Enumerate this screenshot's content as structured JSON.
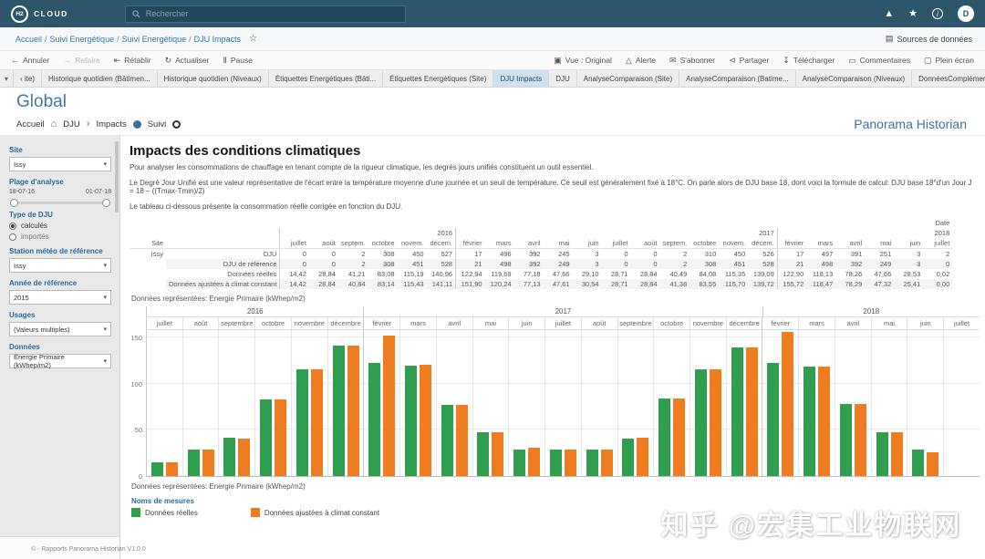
{
  "colors": {
    "navbar": "#2d566b",
    "accent_blue": "#3a72a4",
    "green": "#2f9e4f",
    "orange": "#ef7c1e",
    "active_tab_bg": "#cfe1ee"
  },
  "navbar": {
    "logo_text": "H2",
    "logo_suffix": "CLOUD",
    "search_placeholder": "Rechercher",
    "user_initial": "D"
  },
  "breadcrumb": {
    "items": [
      "Accueil",
      "Suivi Energétique",
      "Suivi Energétique",
      "DJU Impacts"
    ],
    "sources_label": "Sources de données"
  },
  "toolbar": {
    "left": [
      {
        "name": "annuler",
        "icon_name": "undo-icon",
        "icon": "←",
        "label": "Annuler",
        "disabled": false
      },
      {
        "name": "refaire",
        "icon_name": "redo-icon",
        "icon": "→",
        "label": "Refaire",
        "disabled": true
      },
      {
        "name": "retablir",
        "icon_name": "revert-icon",
        "icon": "⇤",
        "label": "Rétablir",
        "disabled": false
      },
      {
        "name": "actualiser",
        "icon_name": "refresh-icon",
        "icon": "↻",
        "label": "Actualiser",
        "disabled": false
      },
      {
        "name": "pause",
        "icon_name": "pause-icon",
        "icon": "Ⅱ",
        "label": "Pause",
        "disabled": false
      }
    ],
    "right": [
      {
        "name": "vue",
        "icon_name": "view-icon",
        "icon": "▣",
        "label": "Vue : Original"
      },
      {
        "name": "alerte",
        "icon_name": "alert-icon",
        "icon": "△",
        "label": "Alerte"
      },
      {
        "name": "sabonner",
        "icon_name": "subscribe-icon",
        "icon": "✉",
        "label": "S'abonner"
      },
      {
        "name": "partager",
        "icon_name": "share-icon",
        "icon": "⊲",
        "label": "Partager"
      },
      {
        "name": "telecharger",
        "icon_name": "download-icon",
        "icon": "↧",
        "label": "Télécharger"
      },
      {
        "name": "commentaires",
        "icon_name": "comments-icon",
        "icon": "▭",
        "label": "Commentaires"
      },
      {
        "name": "plein-ecran",
        "icon_name": "fullscreen-icon",
        "icon": "▢",
        "label": "Plein écran"
      }
    ]
  },
  "tabs": {
    "items": [
      "‹ ite)",
      "Historique quotidien (Bâtimen...",
      "Historique quotidien (Niveaux)",
      "Étiquettes Energétiques (Bâti...",
      "Étiquettes Energétiques (Site)",
      "DJU Impacts",
      "DJU",
      "AnalyseComparaison (Site)",
      "AnalyseComparaison (Batime...",
      "AnalyseComparaison (Niveaux)",
      "DonnéesComplémentaires_1_a..."
    ],
    "active": "DJU Impacts"
  },
  "global_title": "Global",
  "subnav": {
    "accueil": "Accueil",
    "dju": "DJU",
    "impacts": "Impacts",
    "suivi": "Suivi",
    "right": "Panorama Historian"
  },
  "sidebar": {
    "site": {
      "label": "Site",
      "value": "Issy"
    },
    "plage": {
      "label": "Plage d'analyse",
      "start": "18-07-16",
      "end": "01-07-18"
    },
    "type_dju": {
      "label": "Type de DJU",
      "options": [
        {
          "label": "calculés",
          "selected": true
        },
        {
          "label": "importés",
          "selected": false
        }
      ]
    },
    "station": {
      "label": "Station météo de référence",
      "value": "Issy"
    },
    "annee": {
      "label": "Année de référence",
      "value": "2015"
    },
    "usages": {
      "label": "Usages",
      "value": "(Valeurs multiples)"
    },
    "donnees": {
      "label": "Données",
      "value": "Energie Primaire (kWhep/m2)"
    },
    "footer": "© - Rapports Panorama Historian V1.0.0"
  },
  "content": {
    "title": "Impacts des conditions climatiques",
    "p1": "Pour analyser les consommations de chauffage en tenant compte de la rigueur climatique, les degrés jours unifiés constituent un outil essentiel.",
    "p2": "Le Degré Jour Unifié est une valeur représentative de l'écart entre la température moyenne d'une journée et un seuil de température. Ce seuil est généralement fixé à 18°C. On parle alors de DJU base 18, dont voici la formule de calcul: DJU base 18°d'un Jour J = 18 – ((Tmax-Tmin)/2)",
    "p3": "Le tableau ci-dessous présente la consommation réelle corrigée en fonction du DJU.",
    "data_caption_top": "Données représentées: Energie Primaire (kWhep/m2)",
    "data_caption_bottom": "Données représentées: Energie Primaire (kWhep/m2)"
  },
  "table": {
    "date_header": "Date",
    "site_header": "Site",
    "site_value": "Issy",
    "year_groups": [
      {
        "year": "2016",
        "cols": 6
      },
      {
        "year": "2017",
        "cols": 11
      },
      {
        "year": "2018",
        "cols": 6
      }
    ],
    "months": [
      "juillet",
      "août",
      "septem.",
      "octobre",
      "novem.",
      "décem.",
      "février",
      "mars",
      "avril",
      "mai",
      "juin",
      "juillet",
      "août",
      "septem.",
      "octobre",
      "novem.",
      "décem.",
      "février",
      "mars",
      "avril",
      "mai",
      "juin",
      "juillet"
    ],
    "rows": [
      {
        "label": "DJU",
        "values": [
          "0",
          "0",
          "2",
          "308",
          "450",
          "527",
          "17",
          "496",
          "392",
          "245",
          "3",
          "0",
          "0",
          "2",
          "310",
          "450",
          "526",
          "17",
          "497",
          "391",
          "251",
          "3",
          "2"
        ]
      },
      {
        "label": "DJU de référence",
        "values": [
          "0",
          "0",
          "2",
          "308",
          "451",
          "528",
          "21",
          "498",
          "392",
          "249",
          "3",
          "0",
          "0",
          "2",
          "308",
          "451",
          "528",
          "21",
          "498",
          "392",
          "249",
          "3",
          "0"
        ]
      },
      {
        "label": "Données réelles",
        "values": [
          "14,42",
          "28,84",
          "41,21",
          "83,08",
          "115,19",
          "140,96",
          "122,94",
          "119,69",
          "77,18",
          "47,66",
          "29,10",
          "28,71",
          "28,84",
          "40,49",
          "84,08",
          "115,35",
          "139,09",
          "122,90",
          "118,13",
          "78,26",
          "47,66",
          "28,53",
          "0,02"
        ]
      },
      {
        "label": "Données ajustées à climat constant",
        "values": [
          "14,42",
          "28,84",
          "40,84",
          "83,14",
          "115,43",
          "141,11",
          "151,90",
          "120,24",
          "77,13",
          "47,61",
          "30,54",
          "28,71",
          "28,84",
          "41,38",
          "83,55",
          "115,70",
          "139,72",
          "155,72",
          "118,47",
          "78,29",
          "47,32",
          "25,41",
          "0,00"
        ]
      }
    ]
  },
  "chart_data": {
    "type": "bar",
    "title": "Données représentées: Energie Primaire (kWhep/m2)",
    "ylabel": "Energie Primaire (kWhep/m2)",
    "year_groups": [
      {
        "year": "2016",
        "cols": 6
      },
      {
        "year": "2017",
        "cols": 11
      },
      {
        "year": "2018",
        "cols": 6
      }
    ],
    "categories": [
      "juillet",
      "août",
      "septembre",
      "octobre",
      "novembre",
      "décembre",
      "février",
      "mars",
      "avril",
      "mai",
      "juin",
      "juillet",
      "août",
      "septembre",
      "octobre",
      "novembre",
      "décembre",
      "février",
      "mars",
      "avril",
      "mai",
      "juin",
      "juillet"
    ],
    "series": [
      {
        "name": "Données réelles",
        "color": "#2f9e4f",
        "values": [
          14.42,
          28.84,
          41.21,
          83.08,
          115.19,
          140.96,
          122.94,
          119.69,
          77.18,
          47.66,
          29.1,
          28.71,
          28.84,
          40.49,
          84.08,
          115.35,
          139.09,
          122.9,
          118.13,
          78.26,
          47.66,
          28.53,
          0.02
        ]
      },
      {
        "name": "Données ajustées à climat constant",
        "color": "#ef7c1e",
        "values": [
          14.42,
          28.84,
          40.84,
          83.14,
          115.43,
          141.11,
          151.9,
          120.24,
          77.13,
          47.61,
          30.54,
          28.71,
          28.84,
          41.38,
          83.55,
          115.7,
          139.72,
          155.72,
          118.47,
          78.29,
          47.32,
          25.41,
          0.0
        ]
      }
    ],
    "yticks": [
      0,
      50,
      100,
      150
    ],
    "ylim": [
      0,
      160
    ],
    "grid": true,
    "legend_title": "Noms de mesures",
    "legend_position": "bottom"
  },
  "watermark": "知乎 @宏集工业物联网"
}
